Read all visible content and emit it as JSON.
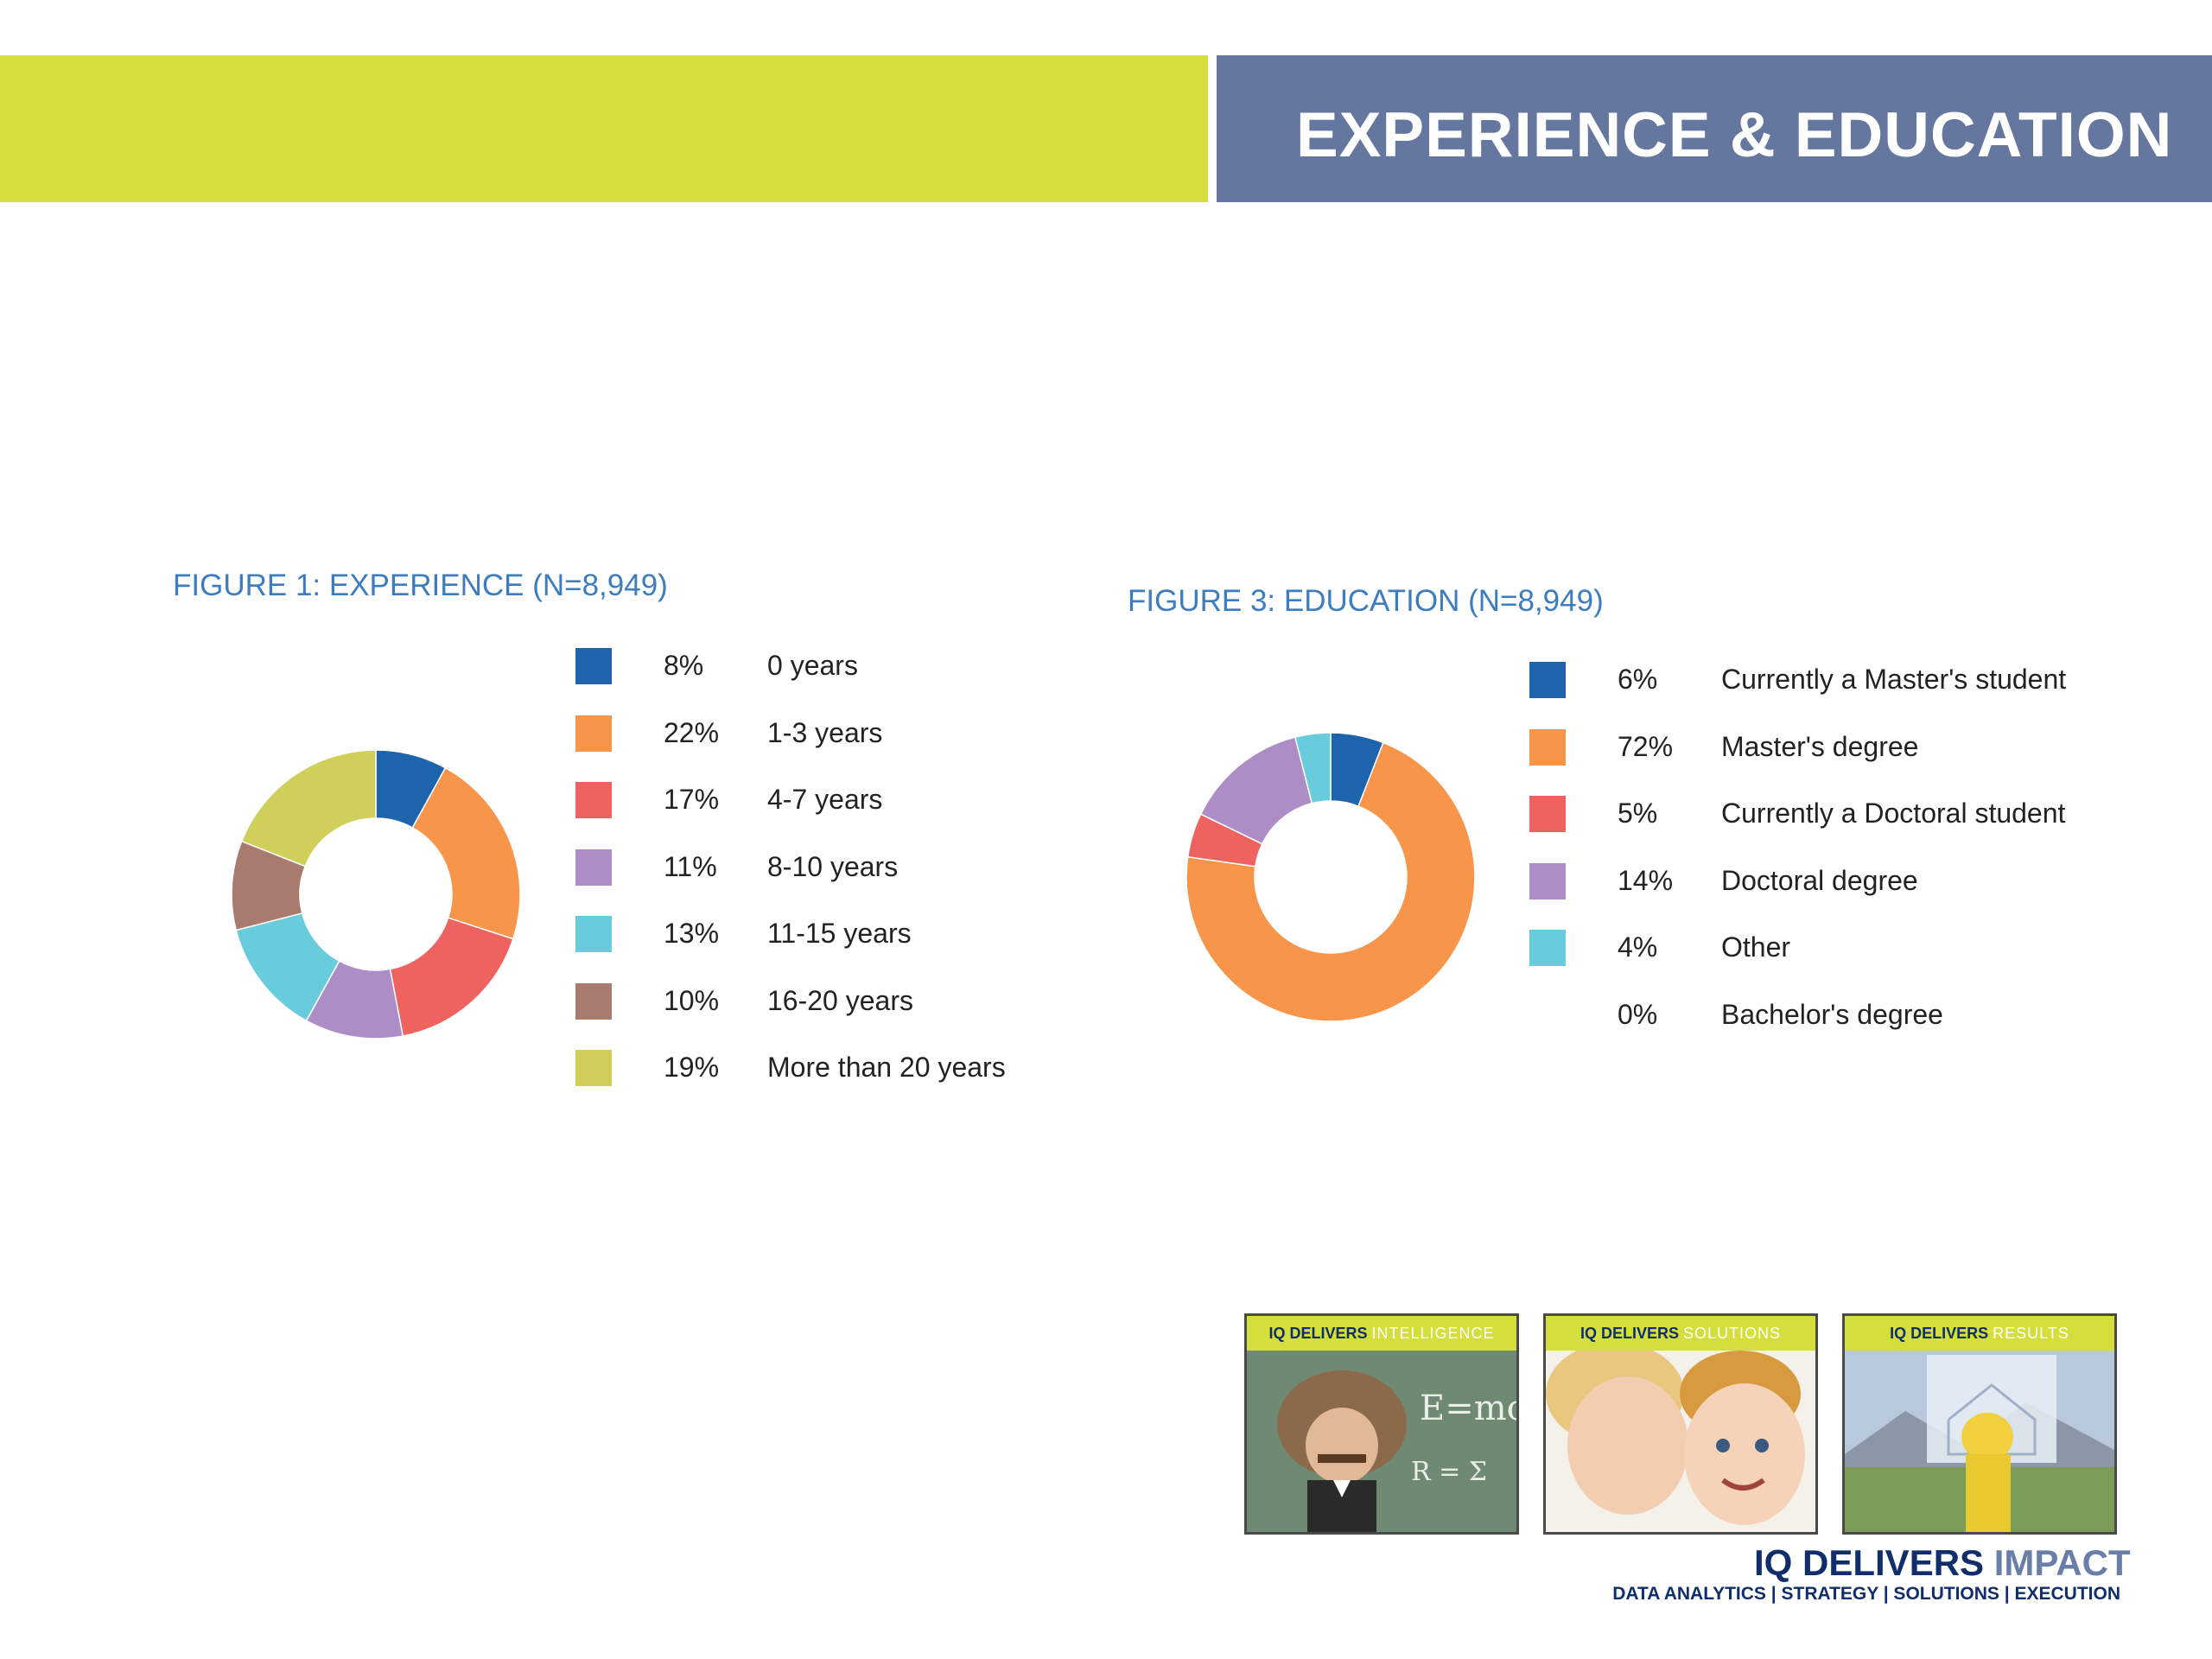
{
  "header": {
    "title": "EXPERIENCE & EDUCATION"
  },
  "chart_data": [
    {
      "type": "pie",
      "title": "FIGURE 1: EXPERIENCE (N=8,949)",
      "series": [
        {
          "label": "0 years",
          "pct_label": "8%",
          "value": 8,
          "color": "#1d64ad"
        },
        {
          "label": "1-3 years",
          "pct_label": "22%",
          "value": 22,
          "color": "#f7964a"
        },
        {
          "label": "4-7 years",
          "pct_label": "17%",
          "value": 17,
          "color": "#ee6360"
        },
        {
          "label": "8-10 years",
          "pct_label": "11%",
          "value": 11,
          "color": "#ad8dc6"
        },
        {
          "label": "11-15 years",
          "pct_label": "13%",
          "value": 13,
          "color": "#68ccdc"
        },
        {
          "label": "16-20 years",
          "pct_label": "10%",
          "value": 10,
          "color": "#a97b6e"
        },
        {
          "label": "More than 20 years",
          "pct_label": "19%",
          "value": 19,
          "color": "#cfcf5a"
        }
      ]
    },
    {
      "type": "pie",
      "title": "FIGURE 3: EDUCATION (N=8,949)",
      "series": [
        {
          "label": "Currently a Master's student",
          "pct_label": "6%",
          "value": 6,
          "color": "#1d64ad"
        },
        {
          "label": "Master's degree",
          "pct_label": "72%",
          "value": 72,
          "color": "#f7964a"
        },
        {
          "label": "Currently a Doctoral student",
          "pct_label": "5%",
          "value": 5,
          "color": "#ee6360"
        },
        {
          "label": "Doctoral degree",
          "pct_label": "14%",
          "value": 14,
          "color": "#ad8dc6"
        },
        {
          "label": "Other",
          "pct_label": "4%",
          "value": 4,
          "color": "#68ccdc"
        },
        {
          "label": "Bachelor's degree",
          "pct_label": "0%",
          "value": 0,
          "color": null
        }
      ]
    }
  ],
  "tiles": [
    {
      "brand": "IQ DELIVERS",
      "keyword": "INTELLIGENCE"
    },
    {
      "brand": "IQ DELIVERS",
      "keyword": "SOLUTIONS"
    },
    {
      "brand": "IQ DELIVERS",
      "keyword": "RESULTS"
    }
  ],
  "footer": {
    "brand": "IQ DELIVERS",
    "brand_highlight": "IMPACT",
    "tagline": "DATA ANALYTICS | STRATEGY | SOLUTIONS | EXECUTION"
  }
}
